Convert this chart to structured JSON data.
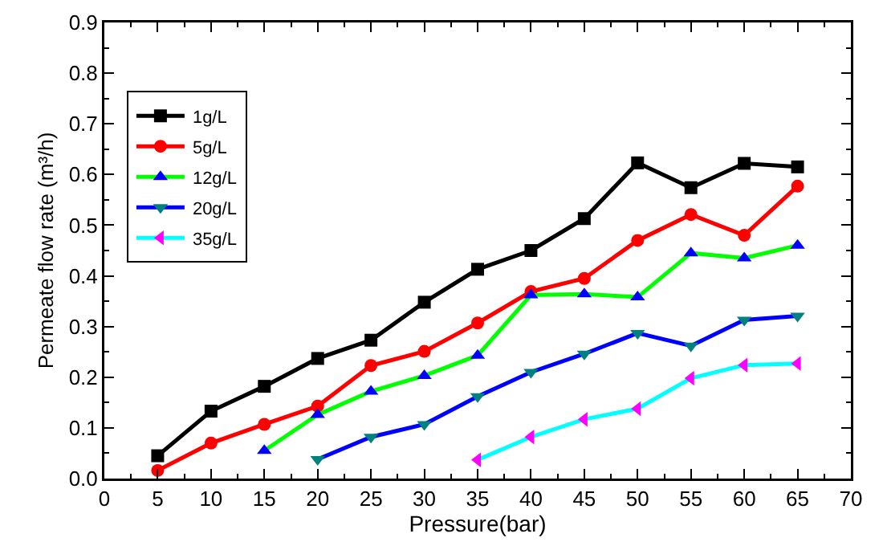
{
  "chart_data": {
    "type": "line",
    "xlabel": "Pressure(bar)",
    "ylabel": "Permeate flow rate (m³/h)",
    "xlim": [
      0,
      70
    ],
    "xticks": [
      0,
      5,
      10,
      15,
      20,
      25,
      30,
      35,
      40,
      45,
      50,
      55,
      60,
      65,
      70
    ],
    "ylim": [
      0,
      0.9
    ],
    "yticks": [
      {
        "value": 0,
        "label": "0.0"
      },
      0.1,
      0.2,
      0.3,
      0.4,
      0.5,
      0.6,
      0.7,
      0.8,
      0.9
    ],
    "grid": false,
    "legend": "top left",
    "line_style": "solid",
    "series": [
      {
        "name": "1g/L",
        "color": "#000000",
        "marker": "square",
        "x": [
          5,
          10,
          15,
          20,
          25,
          30,
          35,
          40,
          45,
          50,
          55,
          60,
          65
        ],
        "values": [
          0.045,
          0.133,
          0.182,
          0.237,
          0.273,
          0.348,
          0.413,
          0.45,
          0.513,
          0.623,
          0.574,
          0.622,
          0.615
        ]
      },
      {
        "name": "5g/L",
        "color": "#ff0000",
        "marker": "circle",
        "x": [
          5,
          10,
          15,
          20,
          25,
          30,
          35,
          40,
          45,
          50,
          55,
          60,
          65
        ],
        "values": [
          0.016,
          0.07,
          0.107,
          0.143,
          0.223,
          0.251,
          0.307,
          0.369,
          0.395,
          0.47,
          0.521,
          0.48,
          0.577
        ]
      },
      {
        "name": "12g/L",
        "color": "#00ff00",
        "marker": "triangle",
        "colors": [
          "#0000ff",
          "#0000ff",
          "#0000ff",
          "#0000ff",
          "#0000ff",
          "#0000ff",
          "#0000ff",
          "#0000ff",
          "#0000ff",
          "#0000ff",
          "#0000ff"
        ],
        "x": [
          15,
          20,
          25,
          30,
          35,
          40,
          45,
          50,
          55,
          60,
          65
        ],
        "values": [
          0.055,
          0.126,
          0.172,
          0.203,
          0.243,
          0.362,
          0.364,
          0.358,
          0.445,
          0.435,
          0.46
        ]
      },
      {
        "name": "20g/L",
        "color": "#0000ff",
        "marker": "triangle-down",
        "colors": [
          "#008080",
          "#008080",
          "#008080",
          "#008080",
          "#008080",
          "#008080",
          "#008080",
          "#008080",
          "#008080",
          "#008080"
        ],
        "x": [
          20,
          25,
          30,
          35,
          40,
          45,
          50,
          55,
          60,
          65
        ],
        "values": [
          0.038,
          0.082,
          0.107,
          0.162,
          0.21,
          0.246,
          0.287,
          0.262,
          0.313,
          0.321
        ]
      },
      {
        "name": "35g/L",
        "color": "#00ffff",
        "marker": "triangle-left",
        "colors": [
          "#ff00ff",
          "#ff00ff",
          "#ff00ff",
          "#ff00ff",
          "#ff00ff",
          "#ff00ff",
          "#ff00ff"
        ],
        "x": [
          35,
          40,
          45,
          50,
          55,
          60,
          65
        ],
        "values": [
          0.037,
          0.082,
          0.117,
          0.138,
          0.198,
          0.224,
          0.227
        ]
      }
    ]
  }
}
